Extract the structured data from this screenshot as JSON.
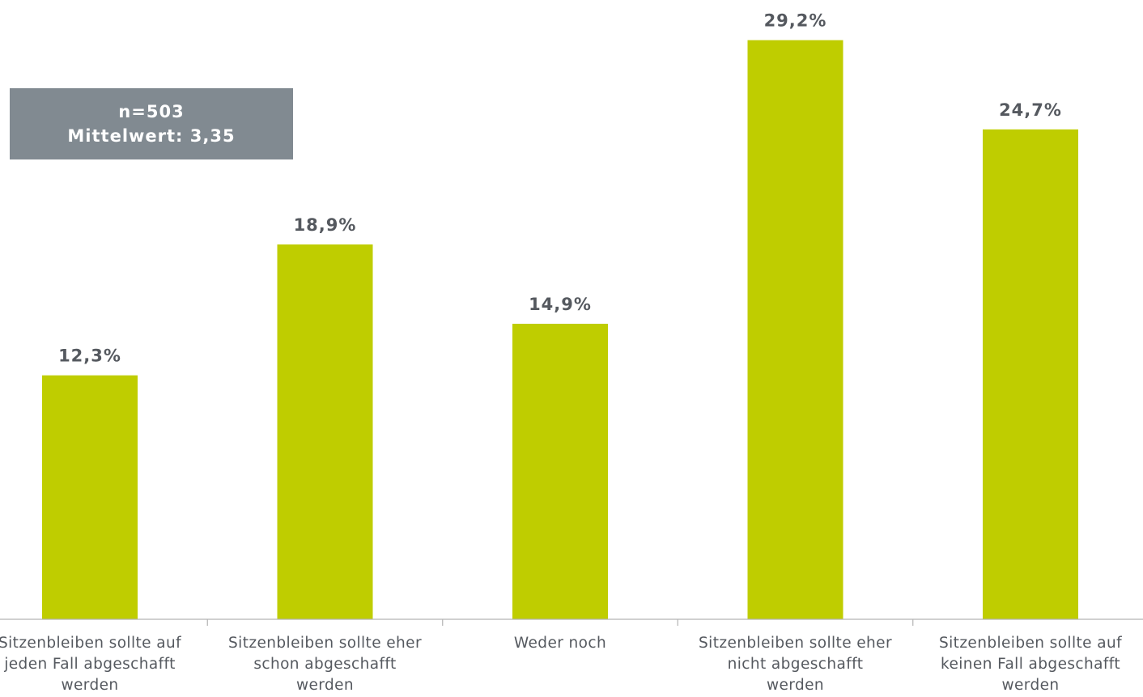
{
  "info": {
    "n_label": "n=503",
    "mean_label": "Mittelwert: 3,35"
  },
  "chart_data": {
    "type": "bar",
    "title": "",
    "xlabel": "",
    "ylabel": "",
    "unit": "%",
    "ylim": [
      0,
      30
    ],
    "grid": false,
    "legend": "none",
    "bar_color": "#bfcd00",
    "label_color": "#55595f",
    "categories": [
      "Sitzenbleiben sollte auf jeden Fall abgeschafft werden",
      "Sitzenbleiben sollte eher schon abgeschafft werden",
      "Weder noch",
      "Sitzenbleiben sollte eher nicht abgeschafft werden",
      "Sitzenbleiben sollte auf keinen Fall abgeschafft werden"
    ],
    "category_lines": [
      [
        "Sitzenbleiben sollte auf",
        "jeden Fall abgeschafft",
        "werden"
      ],
      [
        "Sitzenbleiben sollte eher",
        "schon abgeschafft",
        "werden"
      ],
      [
        "Weder noch"
      ],
      [
        "Sitzenbleiben sollte eher",
        "nicht abgeschafft",
        "werden"
      ],
      [
        "Sitzenbleiben sollte auf",
        "keinen Fall abgeschafft",
        "werden"
      ]
    ],
    "values": [
      12.3,
      18.9,
      14.9,
      29.2,
      24.7
    ],
    "data_labels": [
      "12,3%",
      "18,9%",
      "14,9%",
      "29,2%",
      "24,7%"
    ]
  }
}
